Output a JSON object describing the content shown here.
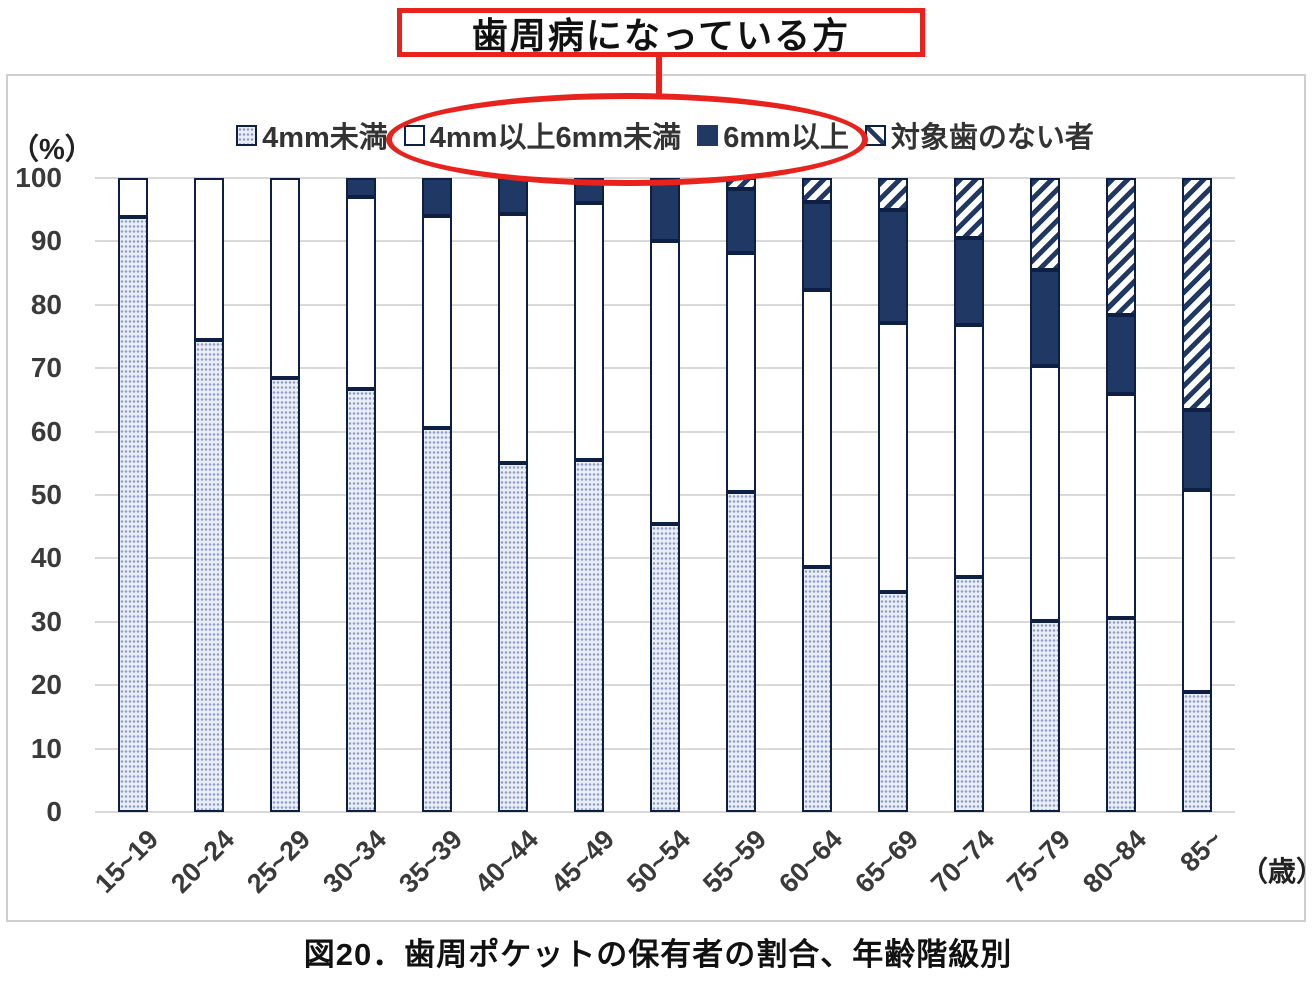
{
  "annotation": {
    "label": "歯周病になっている方"
  },
  "legend": [
    {
      "name": "4mm未満",
      "swatch": "dotted-light"
    },
    {
      "name": "4mm以上6mm未満",
      "swatch": "white"
    },
    {
      "name": "6mm以上",
      "swatch": "solid-navy"
    },
    {
      "name": "対象歯のない者",
      "swatch": "diagonal-hatch"
    }
  ],
  "y_axis": {
    "unit_label": "（%）",
    "ticks": [
      100,
      90,
      80,
      70,
      60,
      50,
      40,
      30,
      20,
      10,
      0
    ]
  },
  "x_axis": {
    "unit_label": "（歳）"
  },
  "caption": "図20．歯周ポケットの保有者の割合、年齢階級別",
  "colors": {
    "accent_red": "#e8231d",
    "navy": "#1f3864",
    "bar_outline": "#0e1f44",
    "dotted_fill_bg": "#e9edf6",
    "dotted_fill_dot": "#8c9cc2",
    "gridline": "#d9d9d9",
    "frame_border": "#cfcfcf"
  },
  "chart_data": {
    "type": "bar",
    "stacked": true,
    "title": "歯周ポケットの保有者の割合、年齢階級別",
    "xlabel": "年齢階級（歳）",
    "ylabel": "（%）",
    "ylim": [
      0,
      100
    ],
    "grid": true,
    "legend_position": "top",
    "categories": [
      "15~19",
      "20~24",
      "25~29",
      "30~34",
      "35~39",
      "40~44",
      "45~49",
      "50~54",
      "55~59",
      "60~64",
      "65~69",
      "70~74",
      "75~79",
      "80~84",
      "85~"
    ],
    "series": [
      {
        "name": "4mm未満",
        "values": [
          93.8,
          74.4,
          68.5,
          66.8,
          60.5,
          55.0,
          55.5,
          45.5,
          50.5,
          38.6,
          34.7,
          37.0,
          30.2,
          30.6,
          19.0
        ]
      },
      {
        "name": "4mm以上6mm未満",
        "values": [
          6.2,
          25.6,
          31.5,
          30.2,
          33.5,
          39.3,
          40.5,
          44.5,
          37.7,
          43.7,
          42.5,
          39.8,
          40.1,
          35.4,
          31.8
        ]
      },
      {
        "name": "6mm以上",
        "values": [
          0,
          0,
          0,
          3.0,
          6.0,
          5.7,
          4.0,
          10.0,
          10.0,
          13.9,
          17.8,
          13.8,
          15.2,
          12.4,
          12.6
        ]
      },
      {
        "name": "対象歯のない者",
        "values": [
          0,
          0,
          0,
          0,
          0,
          0,
          0,
          0,
          1.8,
          3.8,
          5.0,
          9.4,
          14.5,
          21.6,
          36.6
        ]
      }
    ]
  }
}
